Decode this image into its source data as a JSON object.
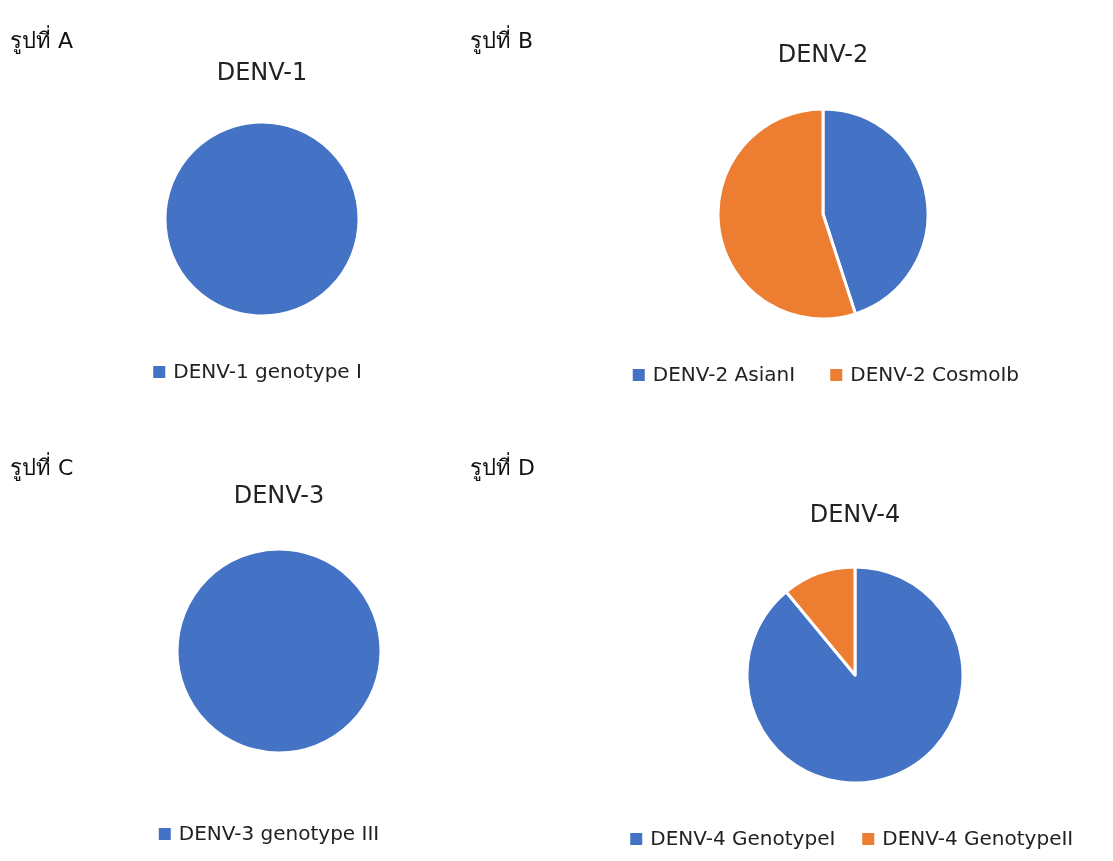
{
  "chart_data": [
    {
      "type": "pie",
      "title": "DENV-1",
      "annotations": [
        "รูปที่ A"
      ],
      "categories": [
        "DENV-1 genotype I"
      ],
      "values": [
        100
      ],
      "colors": [
        "#4472c4"
      ],
      "legend": "bottom"
    },
    {
      "type": "pie",
      "title": "DENV-2",
      "annotations": [
        "รูปที่ B"
      ],
      "categories": [
        "DENV-2 AsianI",
        "DENV-2 CosmoIb"
      ],
      "values": [
        45,
        55
      ],
      "colors": [
        "#4472c4",
        "#ed7d31"
      ],
      "legend": "bottom"
    },
    {
      "type": "pie",
      "title": "DENV-3",
      "annotations": [
        "รูปที่ C"
      ],
      "categories": [
        "DENV-3 genotype III"
      ],
      "values": [
        100
      ],
      "colors": [
        "#4472c4"
      ],
      "legend": "bottom"
    },
    {
      "type": "pie",
      "title": "DENV-4",
      "annotations": [
        "รูปที่ D"
      ],
      "categories": [
        "DENV-4 GenotypeI",
        "DENV-4 GenotypeII"
      ],
      "values": [
        89,
        11
      ],
      "colors": [
        "#4472c4",
        "#ed7d31"
      ],
      "legend": "bottom"
    }
  ]
}
